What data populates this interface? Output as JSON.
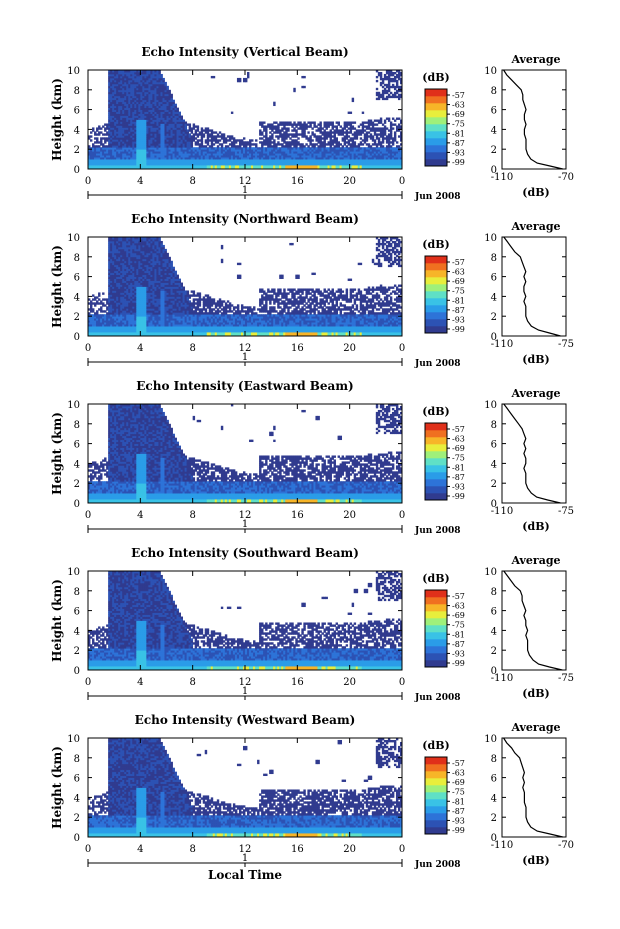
{
  "figure": {
    "xlabel": "Local Time",
    "date_label": "Jun 2008",
    "colorbar_unit": "(dB)",
    "colorbar_ticks": [
      "-57",
      "-63",
      "-69",
      "-75",
      "-81",
      "-87",
      "-93",
      "-99"
    ],
    "colormap": [
      "#ffffff",
      "#303b8f",
      "#2c52b4",
      "#2d73d8",
      "#2a9ce8",
      "#39c2e6",
      "#5fe0c6",
      "#9ff07a",
      "#e8ee3c",
      "#f7b528",
      "#f07020",
      "#e0301a"
    ]
  },
  "chart_data": [
    {
      "type": "heatmap",
      "title": "Echo Intensity (Vertical Beam)",
      "xlabel": "Local Time",
      "ylabel": "Height (km)",
      "x_ticks": [
        "0",
        "4",
        "8",
        "12",
        "16",
        "20",
        "0"
      ],
      "y_ticks": [
        "0",
        "2",
        "4",
        "6",
        "8",
        "10"
      ],
      "xlim": [
        0,
        24
      ],
      "ylim": [
        0,
        10
      ],
      "date_tick": "1",
      "colorbar": {
        "label": "(dB)",
        "ticks": [
          -57,
          -63,
          -69,
          -75,
          -81,
          -87,
          -93,
          -99
        ]
      },
      "profile": {
        "title": "Average",
        "xlabel": "(dB)",
        "x_ticks": [
          "-110",
          "-70"
        ],
        "xlim": [
          -110,
          -70
        ],
        "y_ticks": [
          "0",
          "2",
          "4",
          "6",
          "8",
          "10"
        ],
        "height_km": [
          0.0,
          0.3,
          0.6,
          1.0,
          1.5,
          2.0,
          2.5,
          3.0,
          3.5,
          4.0,
          4.5,
          5.0,
          5.5,
          6.0,
          6.5,
          7.0,
          7.5,
          8.0,
          8.5,
          9.0,
          9.5,
          10.0
        ],
        "intensity_db": [
          -72,
          -80,
          -88,
          -92,
          -94,
          -95,
          -95,
          -95,
          -96,
          -96,
          -95,
          -96,
          -96,
          -95,
          -96,
          -97,
          -97,
          -98,
          -101,
          -104,
          -107,
          -109
        ]
      }
    },
    {
      "type": "heatmap",
      "title": "Echo Intensity (Northward Beam)",
      "xlabel": "Local Time",
      "ylabel": "Height (km)",
      "x_ticks": [
        "0",
        "4",
        "8",
        "12",
        "16",
        "20",
        "0"
      ],
      "y_ticks": [
        "0",
        "2",
        "4",
        "6",
        "8",
        "10"
      ],
      "xlim": [
        0,
        24
      ],
      "ylim": [
        0,
        10
      ],
      "date_tick": "1",
      "colorbar": {
        "label": "(dB)",
        "ticks": [
          -57,
          -63,
          -69,
          -75,
          -81,
          -87,
          -93,
          -99
        ]
      },
      "profile": {
        "title": "Average",
        "xlabel": "(dB)",
        "x_ticks": [
          "-110",
          "-75"
        ],
        "xlim": [
          -110,
          -75
        ],
        "y_ticks": [
          "0",
          "2",
          "4",
          "6",
          "8",
          "10"
        ],
        "height_km": [
          0.0,
          0.3,
          0.6,
          1.0,
          1.5,
          2.0,
          2.5,
          3.0,
          3.5,
          4.0,
          4.5,
          5.0,
          5.5,
          6.0,
          6.5,
          7.0,
          7.5,
          8.0,
          8.5,
          9.0,
          9.5,
          10.0
        ],
        "intensity_db": [
          -78,
          -84,
          -90,
          -94,
          -96,
          -97,
          -97,
          -97,
          -98,
          -97,
          -98,
          -98,
          -97,
          -98,
          -97,
          -98,
          -99,
          -100,
          -103,
          -105,
          -107,
          -109
        ]
      }
    },
    {
      "type": "heatmap",
      "title": "Echo Intensity (Eastward Beam)",
      "xlabel": "Local Time",
      "ylabel": "Height (km)",
      "x_ticks": [
        "0",
        "4",
        "8",
        "12",
        "16",
        "20",
        "0"
      ],
      "y_ticks": [
        "0",
        "2",
        "4",
        "6",
        "8",
        "10"
      ],
      "xlim": [
        0,
        24
      ],
      "ylim": [
        0,
        10
      ],
      "date_tick": "1",
      "colorbar": {
        "label": "(dB)",
        "ticks": [
          -57,
          -63,
          -69,
          -75,
          -81,
          -87,
          -93,
          -99
        ]
      },
      "profile": {
        "title": "Average",
        "xlabel": "(dB)",
        "x_ticks": [
          "-110",
          "-75"
        ],
        "xlim": [
          -110,
          -75
        ],
        "y_ticks": [
          "0",
          "2",
          "4",
          "6",
          "8",
          "10"
        ],
        "height_km": [
          0.0,
          0.3,
          0.6,
          1.0,
          1.5,
          2.0,
          2.5,
          3.0,
          3.5,
          4.0,
          4.5,
          5.0,
          5.5,
          6.0,
          6.5,
          7.0,
          7.5,
          8.0,
          8.5,
          9.0,
          9.5,
          10.0
        ],
        "intensity_db": [
          -78,
          -85,
          -91,
          -94,
          -96,
          -97,
          -97,
          -97,
          -98,
          -97,
          -97,
          -98,
          -97,
          -98,
          -97,
          -98,
          -99,
          -101,
          -103,
          -105,
          -107,
          -109
        ]
      }
    },
    {
      "type": "heatmap",
      "title": "Echo Intensity (Southward Beam)",
      "xlabel": "Local Time",
      "ylabel": "Height (km)",
      "x_ticks": [
        "0",
        "4",
        "8",
        "12",
        "16",
        "20",
        "0"
      ],
      "y_ticks": [
        "0",
        "2",
        "4",
        "6",
        "8",
        "10"
      ],
      "xlim": [
        0,
        24
      ],
      "ylim": [
        0,
        10
      ],
      "date_tick": "1",
      "colorbar": {
        "label": "(dB)",
        "ticks": [
          -57,
          -63,
          -69,
          -75,
          -81,
          -87,
          -93,
          -99
        ]
      },
      "profile": {
        "title": "Average",
        "xlabel": "(dB)",
        "x_ticks": [
          "-110",
          "-75"
        ],
        "xlim": [
          -110,
          -75
        ],
        "y_ticks": [
          "0",
          "2",
          "4",
          "6",
          "8",
          "10"
        ],
        "height_km": [
          0.0,
          0.3,
          0.6,
          1.0,
          1.5,
          2.0,
          2.5,
          3.0,
          3.5,
          4.0,
          4.5,
          5.0,
          5.5,
          6.0,
          6.5,
          7.0,
          7.5,
          8.0,
          8.5,
          9.0,
          9.5,
          10.0
        ],
        "intensity_db": [
          -77,
          -84,
          -90,
          -93,
          -95,
          -96,
          -96,
          -96,
          -97,
          -96,
          -97,
          -97,
          -98,
          -97,
          -98,
          -99,
          -99,
          -100,
          -103,
          -105,
          -107,
          -109
        ]
      }
    },
    {
      "type": "heatmap",
      "title": "Echo Intensity (Westward Beam)",
      "xlabel": "Local Time",
      "ylabel": "Height (km)",
      "x_ticks": [
        "0",
        "4",
        "8",
        "12",
        "16",
        "20",
        "0"
      ],
      "y_ticks": [
        "0",
        "2",
        "4",
        "6",
        "8",
        "10"
      ],
      "xlim": [
        0,
        24
      ],
      "ylim": [
        0,
        10
      ],
      "date_tick": "1",
      "colorbar": {
        "label": "(dB)",
        "ticks": [
          -57,
          -63,
          -69,
          -75,
          -81,
          -87,
          -93,
          -99
        ]
      },
      "profile": {
        "title": "Average",
        "xlabel": "(dB)",
        "x_ticks": [
          "-110",
          "-70"
        ],
        "xlim": [
          -110,
          -70
        ],
        "y_ticks": [
          "0",
          "2",
          "4",
          "6",
          "8",
          "10"
        ],
        "height_km": [
          0.0,
          0.3,
          0.6,
          1.0,
          1.5,
          2.0,
          2.5,
          3.0,
          3.5,
          4.0,
          4.5,
          5.0,
          5.5,
          6.0,
          6.5,
          7.0,
          7.5,
          8.0,
          8.5,
          9.0,
          9.5,
          10.0
        ],
        "intensity_db": [
          -72,
          -80,
          -88,
          -92,
          -94,
          -95,
          -95,
          -95,
          -96,
          -96,
          -96,
          -97,
          -96,
          -97,
          -96,
          -97,
          -98,
          -99,
          -102,
          -104,
          -107,
          -109
        ]
      }
    }
  ]
}
